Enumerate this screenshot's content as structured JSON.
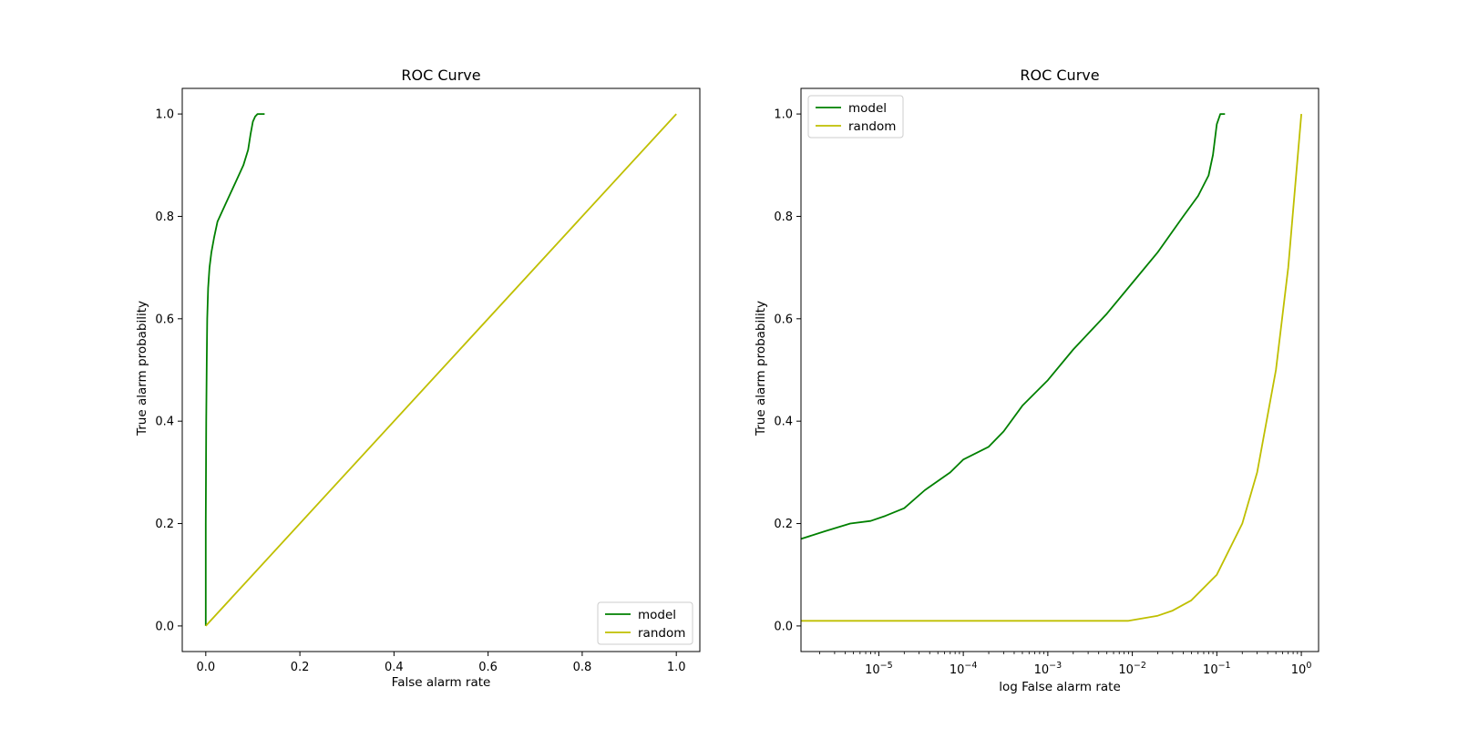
{
  "colors": {
    "model": "#008000",
    "random": "#bfbf00",
    "axes": "#000000",
    "legend_border": "#cccccc"
  },
  "chart_data": [
    {
      "type": "line",
      "title": "ROC Curve",
      "xlabel": "False alarm rate",
      "ylabel": "True alarm probability",
      "xscale": "linear",
      "xlim": [
        -0.05,
        1.05
      ],
      "ylim": [
        -0.05,
        1.05
      ],
      "xticks": [
        0.0,
        0.2,
        0.4,
        0.6,
        0.8,
        1.0
      ],
      "xtick_labels": [
        "0.0",
        "0.2",
        "0.4",
        "0.6",
        "0.8",
        "1.0"
      ],
      "yticks": [
        0.0,
        0.2,
        0.4,
        0.6,
        0.8,
        1.0
      ],
      "ytick_labels": [
        "0.0",
        "0.2",
        "0.4",
        "0.6",
        "0.8",
        "1.0"
      ],
      "legend": "lower right",
      "grid": false,
      "series": [
        {
          "name": "model",
          "color": "#008000",
          "x": [
            0,
            0,
            0.001,
            0.002,
            0.003,
            0.005,
            0.008,
            0.012,
            0.018,
            0.025,
            0.035,
            0.05,
            0.065,
            0.08,
            0.09,
            0.095,
            0.1,
            0.105,
            0.11,
            0.115,
            0.125
          ],
          "y": [
            0,
            0.2,
            0.4,
            0.52,
            0.6,
            0.66,
            0.7,
            0.73,
            0.76,
            0.79,
            0.81,
            0.84,
            0.87,
            0.9,
            0.93,
            0.96,
            0.985,
            0.995,
            1.0,
            1.0,
            1.0
          ]
        },
        {
          "name": "random",
          "color": "#bfbf00",
          "x": [
            0,
            1
          ],
          "y": [
            0,
            1
          ]
        }
      ]
    },
    {
      "type": "line",
      "title": "ROC Curve",
      "xlabel": "log False alarm rate",
      "ylabel": "True alarm probability",
      "xscale": "log",
      "xlim": [
        1.2e-06,
        1.6
      ],
      "ylim": [
        -0.05,
        1.05
      ],
      "xticks": [
        1e-05,
        0.0001,
        0.001,
        0.01,
        0.1,
        1.0
      ],
      "xtick_base": "10",
      "xtick_exponents": [
        "−5",
        "−4",
        "−3",
        "−2",
        "−1",
        "0"
      ],
      "yticks": [
        0.0,
        0.2,
        0.4,
        0.6,
        0.8,
        1.0
      ],
      "ytick_labels": [
        "0.0",
        "0.2",
        "0.4",
        "0.6",
        "0.8",
        "1.0"
      ],
      "legend": "upper left",
      "grid": false,
      "series": [
        {
          "name": "model",
          "color": "#008000",
          "x": [
            1.2e-06,
            2.3e-06,
            4.6e-06,
            8e-06,
            1.2e-05,
            2e-05,
            3.5e-05,
            7e-05,
            0.0001,
            0.0002,
            0.0003,
            0.0005,
            0.001,
            0.002,
            0.005,
            0.01,
            0.02,
            0.04,
            0.06,
            0.08,
            0.09,
            0.1,
            0.11,
            0.125
          ],
          "y": [
            0.17,
            0.185,
            0.2,
            0.205,
            0.215,
            0.23,
            0.265,
            0.3,
            0.325,
            0.35,
            0.38,
            0.43,
            0.48,
            0.54,
            0.61,
            0.67,
            0.73,
            0.8,
            0.84,
            0.88,
            0.92,
            0.98,
            1.0,
            1.0
          ]
        },
        {
          "name": "random",
          "color": "#bfbf00",
          "x": [
            1.2e-06,
            1e-05,
            0.0001,
            0.001,
            0.009,
            0.02,
            0.03,
            0.05,
            0.1,
            0.2,
            0.3,
            0.5,
            0.7,
            1.0
          ],
          "y": [
            0.01,
            0.01,
            0.01,
            0.01,
            0.01,
            0.02,
            0.03,
            0.05,
            0.1,
            0.2,
            0.3,
            0.5,
            0.7,
            1.0
          ]
        }
      ]
    }
  ]
}
